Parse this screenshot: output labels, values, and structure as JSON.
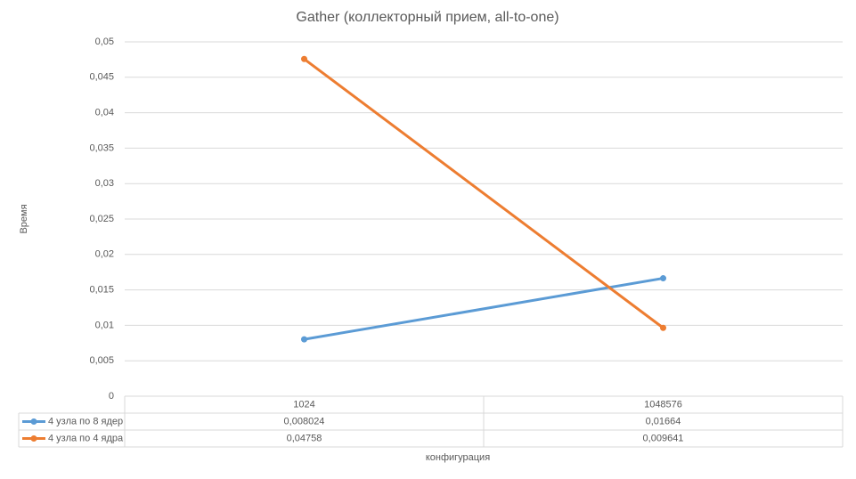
{
  "chart_data": {
    "type": "line",
    "title": "Gather (коллекторный прием, all-to-one)",
    "x_label": "конфигурация",
    "y_label": "Время",
    "categories": [
      "1024",
      "1048576"
    ],
    "series": [
      {
        "name": "4 узла по 8 ядер",
        "color": "#5b9bd5",
        "values": [
          0.008024,
          0.01664
        ],
        "value_labels": [
          "0,008024",
          "0,01664"
        ]
      },
      {
        "name": "4 узла по 4 ядра",
        "color": "#ed7d31",
        "values": [
          0.04758,
          0.009641
        ],
        "value_labels": [
          "0,04758",
          "0,009641"
        ]
      }
    ],
    "ylim": [
      0,
      0.05
    ],
    "yticks": [
      0,
      {
        "value": 0.005,
        "label": "0,005"
      },
      {
        "value": 0.01,
        "label": "0,01"
      },
      {
        "value": 0.015,
        "label": "0,015"
      },
      {
        "value": 0.02,
        "label": "0,02"
      },
      {
        "value": 0.025,
        "label": "0,025"
      },
      {
        "value": 0.03,
        "label": "0,03"
      },
      {
        "value": 0.035,
        "label": "0,035"
      },
      {
        "value": 0.04,
        "label": "0,04"
      },
      {
        "value": 0.045,
        "label": "0,045"
      },
      {
        "value": 0.05,
        "label": "0,05"
      }
    ],
    "grid": true
  }
}
